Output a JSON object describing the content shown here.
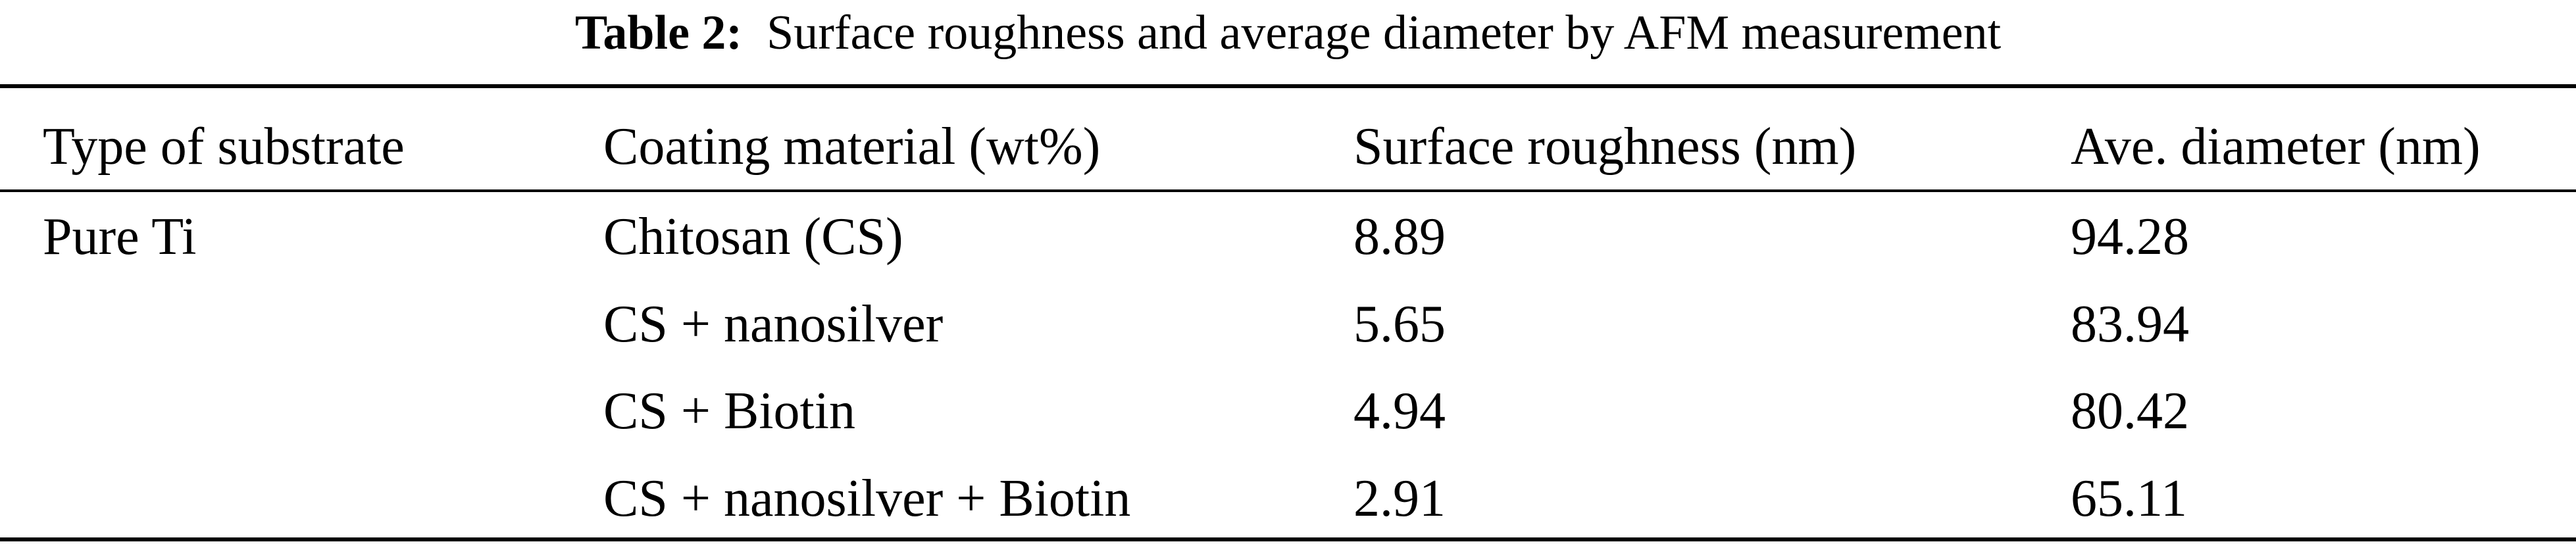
{
  "caption": {
    "label": "Table 2:",
    "text": "Surface roughness and average diameter by AFM measurement"
  },
  "table": {
    "headers": [
      "Type of substrate",
      "Coating material (wt%)",
      "Surface roughness (nm)",
      "Ave. diameter (nm)"
    ],
    "rows": [
      [
        "Pure Ti",
        "Chitosan (CS)",
        "8.89",
        "94.28"
      ],
      [
        "",
        "CS + nanosilver",
        "5.65",
        "83.94"
      ],
      [
        "",
        "CS + Biotin",
        "4.94",
        "80.42"
      ],
      [
        "",
        "CS + nanosilver + Biotin",
        "2.91",
        "65.11"
      ]
    ]
  }
}
